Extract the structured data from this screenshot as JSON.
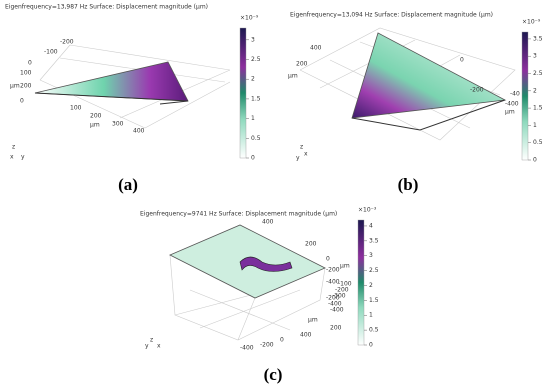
{
  "panels": [
    {
      "label": "(a)",
      "title": "Eigenfrequency=13,987 Hz  Surface: Displacement magnitude (μm)",
      "colorbar": {
        "multiplier": "×10⁻⁹",
        "lim": [
          0,
          3.3
        ],
        "ticks": [
          0,
          0.5,
          1,
          1.5,
          2,
          2.5,
          3
        ]
      },
      "axis_labels": [
        "-200",
        "-100",
        "0",
        "100",
        "μm",
        "200",
        "0",
        "100",
        "200",
        "300",
        "400",
        "μm",
        "z",
        "x",
        "y"
      ]
    },
    {
      "label": "(b)",
      "title": "Eigenfrequency=13,094 Hz    Surface: Displacement magnitude (μm)",
      "colorbar": {
        "multiplier": "×10⁻⁹",
        "lim": [
          0,
          3.7
        ],
        "ticks": [
          0,
          0.5,
          1,
          1.5,
          2,
          2.5,
          3,
          3.5
        ]
      },
      "axis_labels": [
        "400",
        "200",
        "μm",
        "0",
        "-200",
        "-400",
        "-40",
        "μm",
        "z",
        "y",
        "x"
      ]
    },
    {
      "label": "(c)",
      "title": "Eigenfrequency=9741 Hz    Surface: Displacement magnitude (μm)",
      "colorbar": {
        "multiplier": "×10⁻³",
        "lim": [
          0,
          4.2
        ],
        "ticks": [
          0,
          0.5,
          1,
          1.5,
          2,
          2.5,
          3,
          3.5,
          4
        ]
      },
      "axis_labels": [
        "400",
        "200",
        "0",
        "-200",
        "-400",
        "-200",
        "-400",
        "-100",
        "-200",
        "-300",
        "-400",
        "μm",
        "200",
        "400",
        "0",
        "-200",
        "-400",
        "μm",
        "z",
        "y",
        "x"
      ]
    }
  ]
}
